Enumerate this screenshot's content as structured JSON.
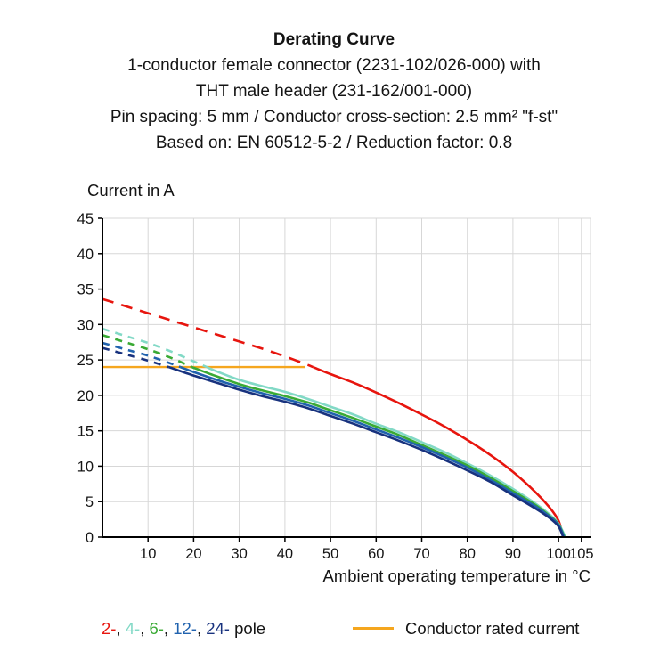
{
  "header": {
    "title": "Derating Curve",
    "lines": [
      "1-conductor female connector (2231-102/026-000) with",
      "THT male header (231-162/001-000)",
      "Pin spacing: 5 mm / Conductor cross-section: 2.5 mm² \"f-st\"",
      "Based on: EN 60512-5-2 / Reduction factor: 0.8"
    ]
  },
  "chart_data": {
    "type": "line",
    "title": "Derating Curve",
    "ylabel": "Current in A",
    "xlabel": "Ambient operating temperature in °C",
    "xlim": [
      0,
      107
    ],
    "ylim": [
      0,
      45
    ],
    "xticks": [
      10,
      20,
      30,
      40,
      50,
      60,
      70,
      80,
      90,
      100,
      105
    ],
    "yticks": [
      0,
      5,
      10,
      15,
      20,
      25,
      30,
      35,
      40,
      45
    ],
    "grid": true,
    "legend_position": "bottom",
    "rated_current": {
      "label": "Conductor rated current",
      "value": 24,
      "x_start": 0,
      "x_end": 44.5,
      "color": "#f5a61e"
    },
    "series": [
      {
        "name": "2-pole",
        "color": "#e7150e",
        "dash_pattern": "13 9",
        "points": [
          [
            0,
            33.6
          ],
          [
            5,
            32.6
          ],
          [
            10,
            31.6
          ],
          [
            15,
            30.6
          ],
          [
            20,
            29.6
          ],
          [
            25,
            28.6
          ],
          [
            30,
            27.6
          ],
          [
            35,
            26.6
          ],
          [
            40,
            25.5
          ],
          [
            45,
            24.3
          ],
          [
            50,
            23.0
          ],
          [
            55,
            21.8
          ],
          [
            60,
            20.4
          ],
          [
            65,
            18.9
          ],
          [
            70,
            17.3
          ],
          [
            75,
            15.6
          ],
          [
            80,
            13.7
          ],
          [
            85,
            11.6
          ],
          [
            90,
            9.2
          ],
          [
            95,
            6.3
          ],
          [
            98,
            4.2
          ],
          [
            100,
            2.3
          ],
          [
            101,
            0
          ]
        ]
      },
      {
        "name": "4-pole",
        "color": "#82d9c6",
        "dash_pattern": "8 7",
        "points": [
          [
            0,
            29.4
          ],
          [
            5,
            28.4
          ],
          [
            10,
            27.4
          ],
          [
            15,
            26.2
          ],
          [
            20,
            24.8
          ],
          [
            25,
            23.4
          ],
          [
            30,
            22.2
          ],
          [
            35,
            21.3
          ],
          [
            40,
            20.5
          ],
          [
            45,
            19.5
          ],
          [
            50,
            18.4
          ],
          [
            55,
            17.3
          ],
          [
            60,
            16.0
          ],
          [
            65,
            14.8
          ],
          [
            70,
            13.4
          ],
          [
            75,
            12.0
          ],
          [
            80,
            10.4
          ],
          [
            85,
            8.7
          ],
          [
            90,
            6.8
          ],
          [
            95,
            4.7
          ],
          [
            98,
            3.2
          ],
          [
            100,
            1.9
          ],
          [
            101.5,
            0
          ]
        ]
      },
      {
        "name": "6-pole",
        "color": "#3aaa35",
        "dash_pattern": "8 7",
        "points": [
          [
            0,
            28.5
          ],
          [
            5,
            27.5
          ],
          [
            10,
            26.5
          ],
          [
            15,
            25.3
          ],
          [
            20,
            23.9
          ],
          [
            25,
            22.7
          ],
          [
            30,
            21.6
          ],
          [
            35,
            20.7
          ],
          [
            40,
            19.9
          ],
          [
            45,
            19.0
          ],
          [
            50,
            17.9
          ],
          [
            55,
            16.8
          ],
          [
            60,
            15.6
          ],
          [
            65,
            14.4
          ],
          [
            70,
            13.0
          ],
          [
            75,
            11.6
          ],
          [
            80,
            10.1
          ],
          [
            85,
            8.4
          ],
          [
            90,
            6.5
          ],
          [
            95,
            4.5
          ],
          [
            98,
            3.0
          ],
          [
            100,
            1.8
          ],
          [
            101.3,
            0
          ]
        ]
      },
      {
        "name": "12-pole",
        "color": "#2062ae",
        "dash_pattern": "8 7",
        "points": [
          [
            0,
            27.4
          ],
          [
            5,
            26.5
          ],
          [
            10,
            25.6
          ],
          [
            15,
            24.5
          ],
          [
            20,
            23.3
          ],
          [
            25,
            22.2
          ],
          [
            30,
            21.2
          ],
          [
            35,
            20.3
          ],
          [
            40,
            19.5
          ],
          [
            45,
            18.6
          ],
          [
            50,
            17.5
          ],
          [
            55,
            16.4
          ],
          [
            60,
            15.2
          ],
          [
            65,
            14.0
          ],
          [
            70,
            12.7
          ],
          [
            75,
            11.3
          ],
          [
            80,
            9.8
          ],
          [
            85,
            8.1
          ],
          [
            90,
            6.2
          ],
          [
            95,
            4.3
          ],
          [
            98,
            2.9
          ],
          [
            100,
            1.7
          ],
          [
            101.2,
            0
          ]
        ]
      },
      {
        "name": "24-pole",
        "color": "#18327e",
        "dash_pattern": "8 7",
        "points": [
          [
            0,
            26.7
          ],
          [
            5,
            25.8
          ],
          [
            10,
            24.9
          ],
          [
            15,
            23.9
          ],
          [
            20,
            22.8
          ],
          [
            25,
            21.8
          ],
          [
            30,
            20.8
          ],
          [
            35,
            19.9
          ],
          [
            40,
            19.1
          ],
          [
            45,
            18.2
          ],
          [
            50,
            17.1
          ],
          [
            55,
            16.0
          ],
          [
            60,
            14.8
          ],
          [
            65,
            13.6
          ],
          [
            70,
            12.3
          ],
          [
            75,
            10.9
          ],
          [
            80,
            9.4
          ],
          [
            85,
            7.8
          ],
          [
            90,
            5.9
          ],
          [
            95,
            4.0
          ],
          [
            98,
            2.7
          ],
          [
            100,
            1.5
          ],
          [
            101,
            0
          ]
        ]
      }
    ]
  },
  "legend": {
    "pole_items": [
      {
        "label": "2-",
        "color": "#e7150e"
      },
      {
        "label": "4-",
        "color": "#82d9c6"
      },
      {
        "label": "6-",
        "color": "#3aaa35"
      },
      {
        "label": "12-",
        "color": "#2062ae"
      },
      {
        "label": "24-",
        "color": "#18327e"
      }
    ],
    "pole_suffix": "pole",
    "rated_label": "Conductor rated current",
    "rated_color": "#f5a61e"
  }
}
